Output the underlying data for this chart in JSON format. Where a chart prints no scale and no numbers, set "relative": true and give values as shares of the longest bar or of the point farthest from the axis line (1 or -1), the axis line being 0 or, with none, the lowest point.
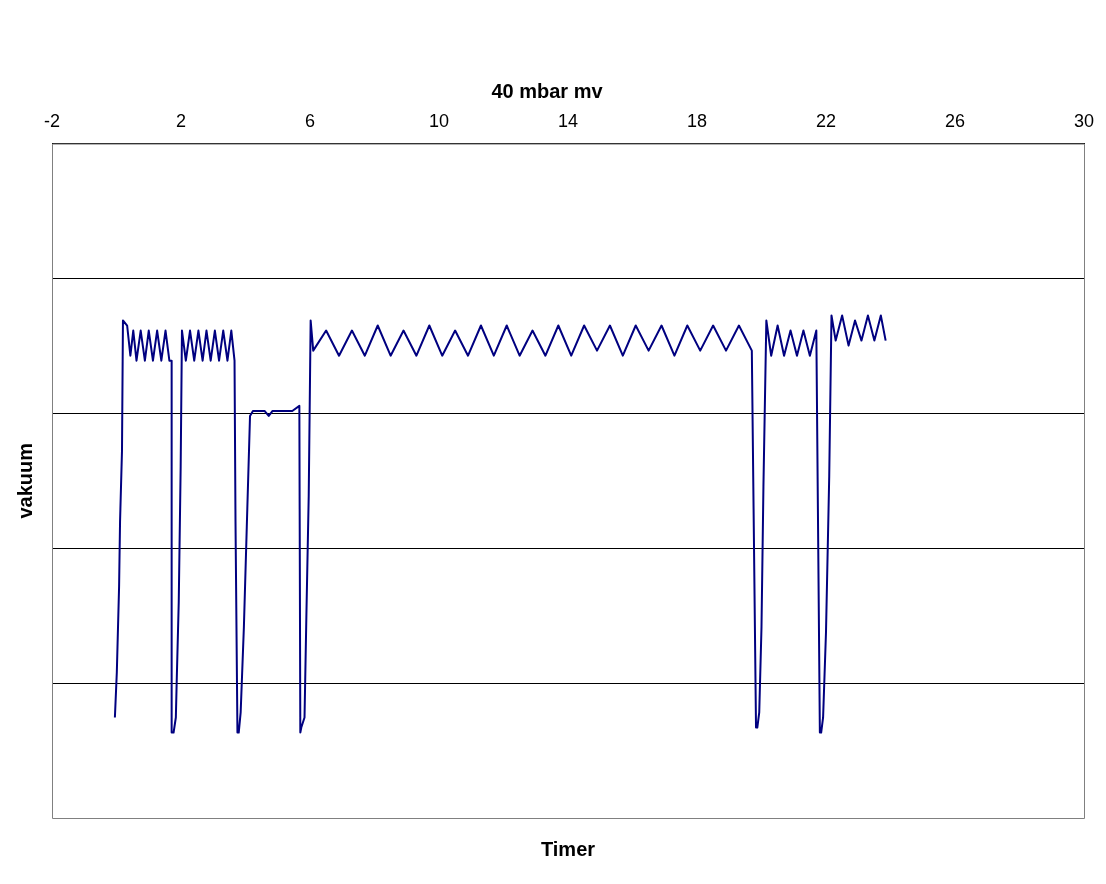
{
  "chart_data": {
    "type": "line",
    "title": "40 mbar mv",
    "xlabel": "Timer",
    "ylabel": "vakuum",
    "relative": true,
    "grid": "y",
    "legend": false,
    "marker": "none",
    "line_style": "solid",
    "xlim": [
      -2,
      30
    ],
    "xticks": [
      -2,
      2,
      6,
      10,
      14,
      18,
      22,
      26,
      30
    ],
    "series": [
      {
        "color": "#000080",
        "x": [
          -0.05,
          0.01,
          0.08,
          0.11,
          0.17,
          0.2,
          0.33,
          0.43,
          0.52,
          0.62,
          0.75,
          0.88,
          1.0,
          1.13,
          1.26,
          1.39,
          1.52,
          1.64,
          1.71,
          1.71,
          1.77,
          1.84,
          1.87,
          1.93,
          1.99,
          2.03,
          2.15,
          2.28,
          2.41,
          2.54,
          2.67,
          2.79,
          2.92,
          3.05,
          3.18,
          3.31,
          3.44,
          3.56,
          3.66,
          3.69,
          3.75,
          3.79,
          3.85,
          3.95,
          4.04,
          4.14,
          4.23,
          4.3,
          4.59,
          4.72,
          4.84,
          5.29,
          5.45,
          5.67,
          5.7,
          5.73,
          5.83,
          5.89,
          5.96,
          6.02,
          6.1,
          6.5,
          6.9,
          7.3,
          7.7,
          8.1,
          8.5,
          8.9,
          9.3,
          9.7,
          10.1,
          10.5,
          10.9,
          11.3,
          11.7,
          12.1,
          12.5,
          12.9,
          13.3,
          13.7,
          14.1,
          14.5,
          14.9,
          15.3,
          15.7,
          16.1,
          16.5,
          16.9,
          17.3,
          17.7,
          18.1,
          18.5,
          18.9,
          19.3,
          19.7,
          19.83,
          19.87,
          19.93,
          20.0,
          20.06,
          20.15,
          20.3,
          20.5,
          20.7,
          20.9,
          21.1,
          21.3,
          21.5,
          21.7,
          21.81,
          21.85,
          21.91,
          22.0,
          22.1,
          22.17,
          22.3,
          22.5,
          22.7,
          22.9,
          23.1,
          23.3,
          23.5,
          23.7,
          23.85
        ],
        "values": [
          0.2,
          0.29,
          0.46,
          0.59,
          0.73,
          0.99,
          0.98,
          0.92,
          0.97,
          0.91,
          0.97,
          0.91,
          0.97,
          0.91,
          0.97,
          0.91,
          0.97,
          0.91,
          0.91,
          0.17,
          0.17,
          0.2,
          0.28,
          0.43,
          0.7,
          0.97,
          0.91,
          0.97,
          0.91,
          0.97,
          0.91,
          0.97,
          0.91,
          0.97,
          0.91,
          0.97,
          0.91,
          0.97,
          0.91,
          0.59,
          0.17,
          0.17,
          0.21,
          0.38,
          0.58,
          0.8,
          0.81,
          0.81,
          0.81,
          0.8,
          0.81,
          0.81,
          0.81,
          0.82,
          0.17,
          0.18,
          0.2,
          0.41,
          0.64,
          0.99,
          0.93,
          0.97,
          0.92,
          0.97,
          0.92,
          0.98,
          0.92,
          0.97,
          0.92,
          0.98,
          0.92,
          0.97,
          0.92,
          0.98,
          0.92,
          0.98,
          0.92,
          0.97,
          0.92,
          0.98,
          0.92,
          0.98,
          0.93,
          0.98,
          0.92,
          0.98,
          0.93,
          0.98,
          0.92,
          0.98,
          0.93,
          0.98,
          0.93,
          0.98,
          0.93,
          0.18,
          0.18,
          0.21,
          0.38,
          0.66,
          0.99,
          0.92,
          0.98,
          0.92,
          0.97,
          0.92,
          0.97,
          0.92,
          0.97,
          0.17,
          0.17,
          0.2,
          0.37,
          0.68,
          1.0,
          0.95,
          1.0,
          0.94,
          0.99,
          0.95,
          1.0,
          0.95,
          1.0,
          0.95
        ]
      }
    ]
  }
}
